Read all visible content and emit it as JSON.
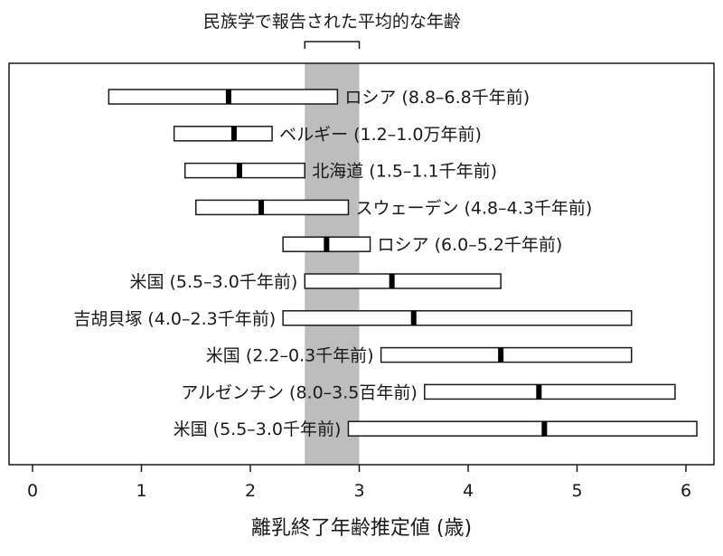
{
  "chart_data": {
    "type": "range-bar",
    "xlabel": "離乳終了年齢推定値 (歳)",
    "xlim": [
      -0.2,
      6.3
    ],
    "xticks": [
      0,
      1,
      2,
      3,
      4,
      5,
      6
    ],
    "grid": false,
    "reference_band": {
      "label": "民族学で報告された平均的な年齢",
      "from": 2.5,
      "to": 3.0,
      "color": "#bdbdbd"
    },
    "label_color": "#1a1a1a",
    "highlight_color": "#e0201b",
    "series": [
      {
        "label": "ロシア (8.8–6.8千年前)",
        "low": 0.7,
        "high": 2.8,
        "mean": 1.8,
        "label_side": "right",
        "highlight": false
      },
      {
        "label": "ベルギー (1.2–1.0万年前)",
        "low": 1.3,
        "high": 2.2,
        "mean": 1.85,
        "label_side": "right",
        "highlight": false
      },
      {
        "label": "北海道 (1.5–1.1千年前)",
        "low": 1.4,
        "high": 2.5,
        "mean": 1.9,
        "label_side": "right",
        "highlight": false
      },
      {
        "label": "スウェーデン (4.8–4.3千年前)",
        "low": 1.5,
        "high": 2.9,
        "mean": 2.1,
        "label_side": "right",
        "highlight": false
      },
      {
        "label": "ロシア (6.0–5.2千年前)",
        "low": 2.3,
        "high": 3.1,
        "mean": 2.7,
        "label_side": "right",
        "highlight": false
      },
      {
        "label": "米国 (5.5–3.0千年前)",
        "low": 2.5,
        "high": 4.3,
        "mean": 3.3,
        "label_side": "left",
        "highlight": false
      },
      {
        "label": "吉胡貝塚 (4.0–2.3千年前)",
        "low": 2.3,
        "high": 5.5,
        "mean": 3.5,
        "label_side": "left",
        "highlight": true
      },
      {
        "label": "米国 (2.2–0.3千年前)",
        "low": 3.2,
        "high": 5.5,
        "mean": 4.3,
        "label_side": "left",
        "highlight": false
      },
      {
        "label": "アルゼンチン (8.0–3.5百年前)",
        "low": 3.6,
        "high": 5.9,
        "mean": 4.65,
        "label_side": "left",
        "highlight": false
      },
      {
        "label": "米国 (5.5–3.0千年前)",
        "low": 2.9,
        "high": 6.1,
        "mean": 4.7,
        "label_side": "left",
        "highlight": false
      }
    ]
  }
}
